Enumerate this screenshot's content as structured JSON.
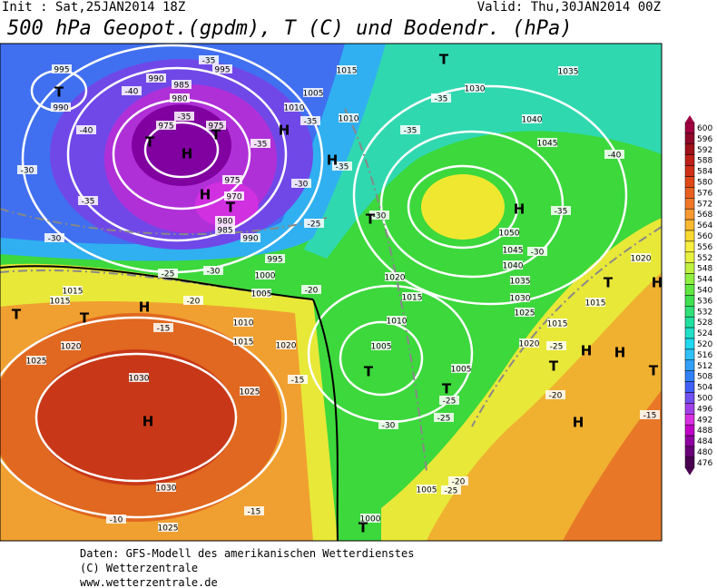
{
  "header": {
    "init": "Init : Sat,25JAN2014 18Z",
    "valid": "Valid: Thu,30JAN2014 00Z",
    "title": "500 hPa Geopot.(gpdm), T (C) und Bodendr. (hPa)"
  },
  "map": {
    "isobar_labels": [
      "995",
      "990",
      "990",
      "985",
      "980",
      "975",
      "975",
      "995",
      "1015",
      "1005",
      "1010",
      "1010",
      "1030",
      "1035",
      "1040",
      "1045",
      "975",
      "970",
      "980",
      "985",
      "990",
      "995",
      "1000",
      "1005",
      "1015",
      "1015",
      "1010",
      "1015",
      "1020",
      "1020",
      "1025",
      "1030",
      "1025",
      "1030",
      "1025",
      "1050",
      "1045",
      "1040",
      "1035",
      "1030",
      "1025",
      "1020",
      "1015",
      "1010",
      "1005",
      "1005",
      "1015",
      "1020",
      "1015",
      "1020",
      "1005",
      "1000"
    ],
    "temperature_labels": [
      "-35",
      "-40",
      "-35",
      "-40",
      "-30",
      "-35",
      "-30",
      "-25",
      "-30",
      "-20",
      "-15",
      "-10",
      "-15",
      "-15",
      "-30",
      "-25",
      "-25",
      "-25",
      "-20",
      "-25",
      "-20",
      "-15",
      "-35",
      "-35",
      "-30",
      "-35",
      "-30",
      "-40",
      "-25",
      "-30",
      "-35",
      "-35",
      "-35",
      "-20"
    ],
    "pressure_centers": [
      "H",
      "H",
      "H",
      "H",
      "H",
      "H",
      "H",
      "H",
      "H",
      "H",
      "H",
      "T",
      "T",
      "T",
      "T",
      "T",
      "T",
      "T",
      "T",
      "T",
      "T",
      "T",
      "T",
      "T",
      "T"
    ]
  },
  "colorbar": {
    "ticks": [
      476,
      480,
      484,
      488,
      492,
      496,
      500,
      504,
      508,
      512,
      516,
      520,
      524,
      528,
      532,
      536,
      540,
      544,
      548,
      552,
      556,
      560,
      564,
      568,
      572,
      576,
      580,
      584,
      588,
      592,
      596,
      600
    ],
    "colors": [
      "#4a0050",
      "#6a0078",
      "#9000a0",
      "#c000c8",
      "#d830e0",
      "#a040e8",
      "#7050f0",
      "#4060f8",
      "#3080f8",
      "#30a0f8",
      "#30c0f8",
      "#20d8f0",
      "#20e0c8",
      "#20e0a0",
      "#30e078",
      "#40e050",
      "#60e840",
      "#90f040",
      "#c0f040",
      "#e8f040",
      "#f8f040",
      "#f8d830",
      "#f8b830",
      "#f89830",
      "#f07828",
      "#e86020",
      "#e04818",
      "#d03018",
      "#c02018",
      "#a01018",
      "#900828",
      "#a00040"
    ]
  },
  "footer": [
    "Daten: GFS-Modell des amerikanischen Wetterdienstes",
    "(C) Wetterzentrale",
    "www.wetterzentrale.de"
  ]
}
